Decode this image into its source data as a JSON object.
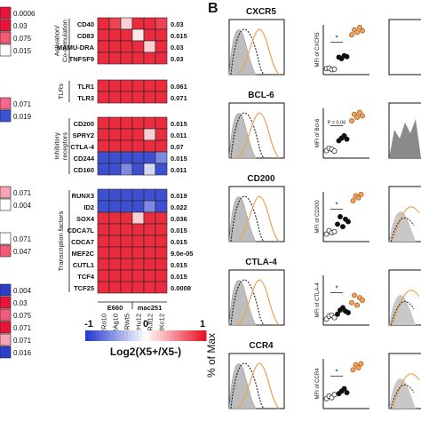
{
  "panel_b_label": "B",
  "left_strip": {
    "values": [
      "0.0006",
      "0.03",
      "0.075",
      "0.015",
      "0.071",
      "0.019",
      "0.071",
      "0.004",
      "0.071",
      "0.047",
      "0.004",
      "0.03",
      "0.075",
      "0.071",
      "0.071",
      "0.016"
    ],
    "colors": [
      "#e8143a",
      "#e8143a",
      "#f25a78",
      "#ffffff",
      "#f4668a",
      "#3b54d6",
      "#f7a3b6",
      "#ffffff",
      "#ffffff",
      "#f25a78",
      "#2d3fc9",
      "#e8143a",
      "#f25a78",
      "#e8143a",
      "#f7a3b6",
      "#2d3fc9"
    ]
  },
  "heatmap": {
    "columns": [
      "RRo10",
      "RAg10",
      "RWt5",
      "RHu12",
      "RJt12",
      "RKc12"
    ],
    "column_groups": [
      "E660",
      "mac251"
    ],
    "scale": {
      "min": "-1",
      "mid": "0",
      "max": "1",
      "label": "Log2(X5+/X5-)"
    },
    "groups": [
      {
        "name": "Activation/\nCo-stimulation",
        "name_lines": [
          "Activation/",
          "Co-stimulation"
        ],
        "rows": [
          {
            "gene": "CD40",
            "p": "0.03",
            "cells": [
              0.9,
              0.8,
              0.2,
              0.9,
              0.9,
              0.8
            ]
          },
          {
            "gene": "CD83",
            "p": "0.015",
            "cells": [
              0.9,
              0.9,
              0.9,
              0.1,
              0.9,
              0.9
            ]
          },
          {
            "gene": "MAMU-DRA",
            "p": "0.03",
            "cells": [
              0.9,
              0.9,
              0.9,
              0.9,
              0.2,
              0.9
            ]
          },
          {
            "gene": "TNFSF9",
            "p": "0.03",
            "cells": [
              0.9,
              0.9,
              0.9,
              0.9,
              0.9,
              0.9
            ]
          }
        ]
      },
      {
        "name": "TLRs",
        "name_lines": [
          "TLRs"
        ],
        "rows": [
          {
            "gene": "TLR1",
            "p": "0.061",
            "cells": [
              0.9,
              0.9,
              0.9,
              0.9,
              0.9,
              0.9
            ]
          },
          {
            "gene": "TLR3",
            "p": "0.071",
            "cells": [
              0.9,
              0.9,
              0.9,
              0.9,
              0.9,
              0.9
            ]
          }
        ]
      },
      {
        "name": "Inhibitory receptors",
        "name_lines": [
          "Inhibitory",
          "receptors"
        ],
        "rows": [
          {
            "gene": "CD200",
            "p": "0.015",
            "cells": [
              0.9,
              0.9,
              0.9,
              0.9,
              0.9,
              0.9
            ]
          },
          {
            "gene": "SPRY2",
            "p": "0.011",
            "cells": [
              0.9,
              0.9,
              0.9,
              0.9,
              0.2,
              0.9
            ]
          },
          {
            "gene": "CTLA-4",
            "p": "0.07",
            "cells": [
              0.9,
              0.9,
              0.9,
              0.9,
              0.9,
              0.9
            ]
          },
          {
            "gene": "CD244",
            "p": "0.015",
            "cells": [
              -0.9,
              -0.9,
              -0.9,
              -0.9,
              -0.9,
              -0.6
            ]
          },
          {
            "gene": "CD160",
            "p": "0.011",
            "cells": [
              -0.9,
              -0.9,
              -0.6,
              -0.9,
              -0.2,
              -0.9
            ]
          }
        ]
      },
      {
        "name": "Transcription factors",
        "name_lines": [
          "Transcription factors"
        ],
        "rows": [
          {
            "gene": "RUNX3",
            "p": "0.019",
            "cells": [
              -0.9,
              -0.9,
              -0.9,
              -0.9,
              -0.9,
              -0.9
            ]
          },
          {
            "gene": "ID2",
            "p": "0.022",
            "cells": [
              -0.9,
              -0.9,
              -0.9,
              -0.9,
              -0.6,
              -0.9
            ]
          },
          {
            "gene": "SOX4",
            "p": "0.036",
            "cells": [
              0.9,
              0.9,
              0.9,
              0.2,
              0.9,
              0.9
            ]
          },
          {
            "gene": "CDCA7L",
            "p": "0.015",
            "cells": [
              0.9,
              0.9,
              0.9,
              0.9,
              0.9,
              0.9
            ]
          },
          {
            "gene": "CDCA7",
            "p": "0.015",
            "cells": [
              0.9,
              0.9,
              0.9,
              0.9,
              0.9,
              0.9
            ]
          },
          {
            "gene": "MEF2C",
            "p": "9.0e-05",
            "cells": [
              0.9,
              0.9,
              0.9,
              0.9,
              0.9,
              0.9
            ]
          },
          {
            "gene": "CUTL1",
            "p": "0.015",
            "cells": [
              0.9,
              0.9,
              0.9,
              0.9,
              0.9,
              0.9
            ]
          },
          {
            "gene": "TCF4",
            "p": "0.015",
            "cells": [
              0.9,
              0.9,
              0.9,
              0.9,
              0.9,
              0.9
            ]
          },
          {
            "gene": "TCF25",
            "p": "0.0008",
            "cells": [
              0.9,
              0.9,
              0.9,
              0.9,
              0.9,
              0.9
            ]
          }
        ]
      }
    ]
  },
  "flow": {
    "y_axis_label": "% of Max",
    "markers": [
      {
        "name": "CXCR5",
        "mfi_label": "MFI of CXCR5",
        "sig": "*",
        "pval": "",
        "white_pts": [
          0.12,
          0.13,
          0.1,
          0.11
        ],
        "black_pts": [
          0.35,
          0.32,
          0.38,
          0.36
        ],
        "orange_pts": [
          0.8,
          0.9,
          0.85,
          0.95,
          0.88
        ]
      },
      {
        "name": "BCL-6",
        "mfi_label": "MFI of Bcl-6",
        "sig": "",
        "pval": "P = 0.06",
        "white_pts": [
          0.15,
          0.2,
          0.18,
          0.14
        ],
        "black_pts": [
          0.35,
          0.4,
          0.45,
          0.38
        ],
        "orange_pts": [
          0.75,
          0.88,
          0.82,
          0.92,
          0.85
        ]
      },
      {
        "name": "CD200",
        "mfi_label": "MFI of CD200",
        "sig": "*",
        "pval": "",
        "white_pts": [
          0.15,
          0.22,
          0.18,
          0.2
        ],
        "black_pts": [
          0.35,
          0.5,
          0.3,
          0.45,
          0.4
        ],
        "orange_pts": [
          0.82,
          0.92,
          0.88,
          0.95
        ]
      },
      {
        "name": "CTLA-4",
        "mfi_label": "MFI of CTLA-4",
        "sig": "*",
        "pval": "",
        "white_pts": [
          0.12,
          0.18,
          0.2,
          0.15
        ],
        "black_pts": [
          0.22,
          0.3,
          0.35,
          0.28,
          0.25
        ],
        "orange_pts": [
          0.45,
          0.6,
          0.4,
          0.55,
          0.5
        ]
      },
      {
        "name": "CCR4",
        "mfi_label": "MFI of CCR4",
        "sig": "*",
        "pval": "",
        "white_pts": [
          0.2,
          0.25,
          0.22,
          0.28
        ],
        "black_pts": [
          0.3,
          0.35,
          0.4,
          0.32
        ],
        "orange_pts": [
          0.78,
          0.88,
          0.82,
          0.9
        ]
      }
    ]
  }
}
